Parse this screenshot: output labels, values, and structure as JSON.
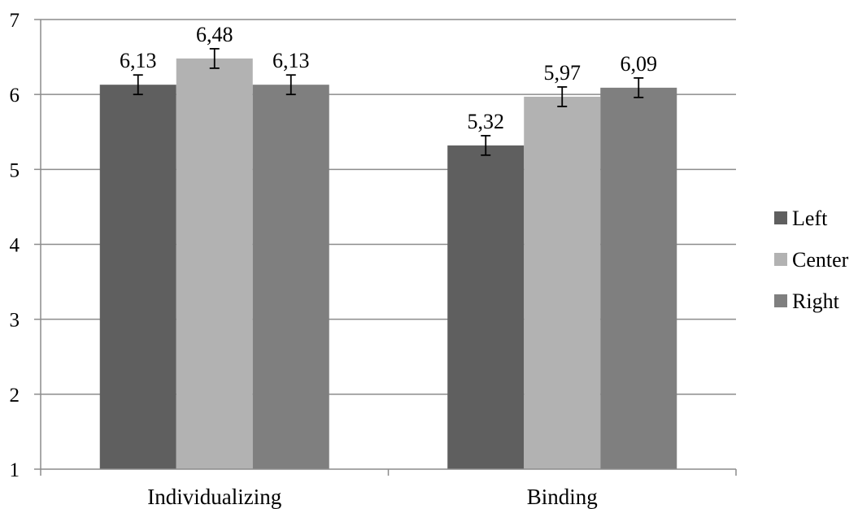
{
  "chart_data": {
    "type": "bar",
    "categories": [
      "Individualizing",
      "Binding"
    ],
    "series": [
      {
        "name": "Left",
        "values": [
          6.13,
          5.32
        ],
        "labels": [
          "6,13",
          "5,32"
        ],
        "error": [
          0.13,
          0.13
        ],
        "color": "#5f5f5f"
      },
      {
        "name": "Center",
        "values": [
          6.48,
          5.97
        ],
        "labels": [
          "6,48",
          "5,97"
        ],
        "error": [
          0.13,
          0.13
        ],
        "color": "#b2b2b2"
      },
      {
        "name": "Right",
        "values": [
          6.13,
          6.09
        ],
        "labels": [
          "6,13",
          "6,09"
        ],
        "error": [
          0.13,
          0.13
        ],
        "color": "#7f7f7f"
      }
    ],
    "yticks": [
      "1",
      "2",
      "3",
      "4",
      "5",
      "6",
      "7"
    ],
    "ylim": [
      1,
      7
    ],
    "grid": true,
    "legend_position": "right",
    "gridline_color": "#8c8c8c"
  }
}
